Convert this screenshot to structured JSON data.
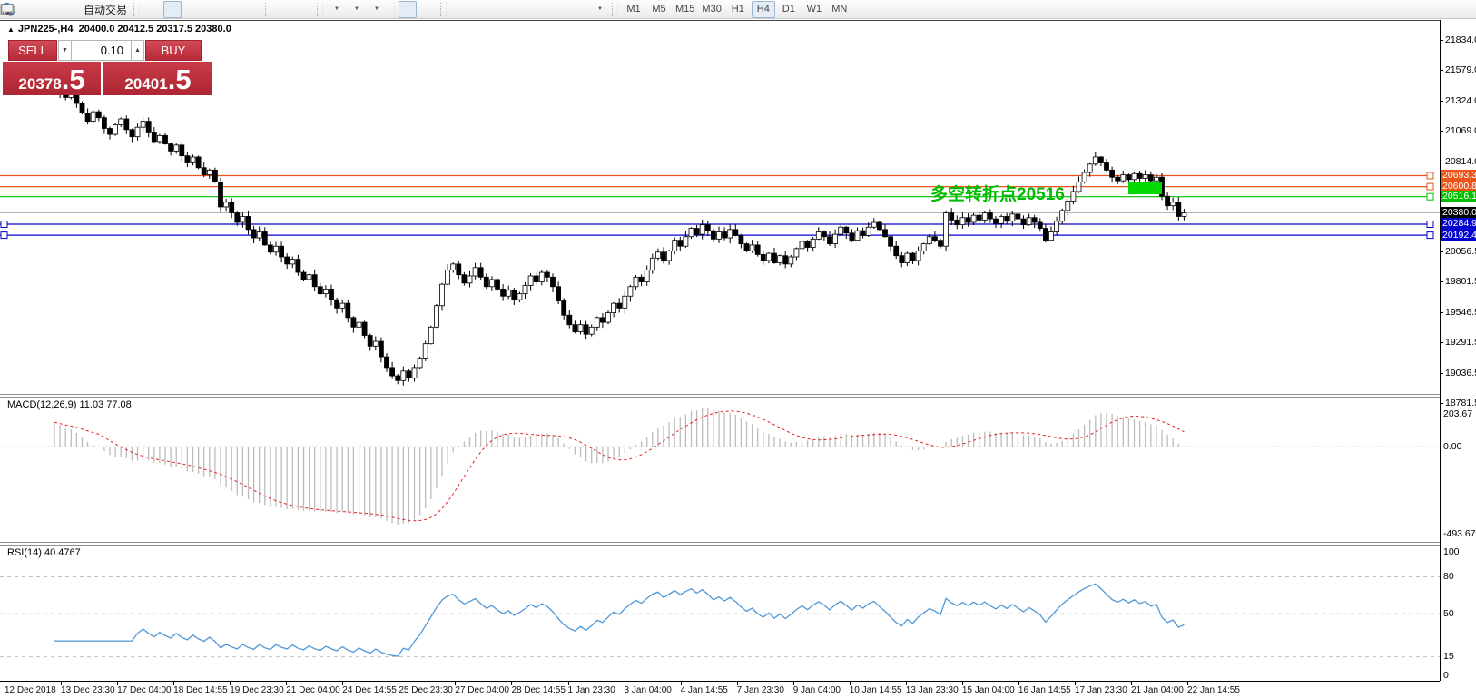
{
  "toolbar": {
    "new_order_label": "单",
    "autotrade_label": "自动交易",
    "dropdown_glyph": "▼",
    "timeframes": [
      "M1",
      "M5",
      "M15",
      "M30",
      "H1",
      "H4",
      "D1",
      "W1",
      "MN"
    ],
    "active_timeframe": "H4"
  },
  "symbol_bar": {
    "marker": "▲",
    "symbol": "JPN225-,H4",
    "ohlc": "20400.0 20412.5 20317.5 20380.0"
  },
  "trade_panel": {
    "sell_label": "SELL",
    "buy_label": "BUY",
    "volume": "0.10",
    "spinner_down": "▼",
    "spinner_up": "▲",
    "sell_price_main": "20378",
    "sell_price_frac": ".5",
    "buy_price_main": "20401",
    "buy_price_frac": ".5"
  },
  "annotation": {
    "text": "多空转折点20516",
    "color": "#00bb00"
  },
  "levels": [
    {
      "price": 20693.3,
      "label": "20693.3",
      "color": "#e8541a",
      "kind": "resistance-line"
    },
    {
      "price": 20600.8,
      "label": "20600.8",
      "color": "#e8541a",
      "kind": "resistance-line"
    },
    {
      "price": 20516.1,
      "label": "20516.1",
      "color": "#00c000",
      "kind": "pivot-line"
    },
    {
      "price": 20380.0,
      "label": "20380.0",
      "color": "#000000",
      "kind": "current-price"
    },
    {
      "price": 20284.9,
      "label": "20284.9",
      "color": "#0202cf",
      "kind": "support-line"
    },
    {
      "price": 20192.4,
      "label": "20192.4",
      "color": "#0202cf",
      "kind": "support-line"
    }
  ],
  "price_scale_ticks": [
    21834.0,
    21579.0,
    21324.0,
    21069.0,
    20814.0,
    20056.5,
    19801.5,
    19546.5,
    19291.5,
    19036.5,
    18781.5
  ],
  "macd_panel": {
    "label": "MACD(12,26,9) 11.03 77.08",
    "scale_max": "203.67",
    "scale_zero": "0.00",
    "scale_min": "-493.67"
  },
  "rsi_panel": {
    "label": "RSI(14) 40.4767",
    "scale_labels": [
      "100",
      "80",
      "50",
      "15",
      "0"
    ],
    "level_values": [
      80,
      50,
      15
    ]
  },
  "time_axis": [
    "12 Dec 2018",
    "13 Dec 23:30",
    "17 Dec 04:00",
    "18 Dec 14:55",
    "19 Dec 23:30",
    "21 Dec 04:00",
    "24 Dec 14:55",
    "25 Dec 23:30",
    "27 Dec 04:00",
    "28 Dec 14:55",
    "1 Jan 23:30",
    "3 Jan 04:00",
    "4 Jan 14:55",
    "7 Jan 23:30",
    "9 Jan 04:00",
    "10 Jan 14:55",
    "13 Jan 23:30",
    "15 Jan 04:00",
    "16 Jan 14:55",
    "17 Jan 23:30",
    "21 Jan 04:00",
    "22 Jan 14:55"
  ],
  "chart_data": {
    "type": "candlestick",
    "symbol": "JPN225-",
    "timeframe": "H4",
    "current_bar": {
      "open": 20400.0,
      "high": 20412.5,
      "low": 20317.5,
      "close": 20380.0
    },
    "bid": 20378.5,
    "ask": 20401.5,
    "y_range": [
      18781.5,
      21834.0
    ],
    "horizontal_levels": [
      20693.3,
      20600.8,
      20516.1,
      20284.9,
      20192.4
    ],
    "current_price": 20380.0,
    "first_open": 21460,
    "closes": [
      21430,
      21380,
      21350,
      21400,
      21300,
      21220,
      21150,
      21230,
      21180,
      21090,
      21040,
      21120,
      21170,
      21080,
      21020,
      21100,
      21150,
      21060,
      20980,
      21030,
      20960,
      20900,
      20950,
      20860,
      20800,
      20850,
      20760,
      20700,
      20740,
      20640,
      20430,
      20470,
      20380,
      20300,
      20350,
      20240,
      20170,
      20220,
      20110,
      20050,
      20100,
      20010,
      19950,
      19990,
      19880,
      19820,
      19860,
      19760,
      19700,
      19740,
      19650,
      19580,
      19620,
      19500,
      19420,
      19460,
      19350,
      19260,
      19300,
      19170,
      19080,
      19010,
      18970,
      19050,
      18990,
      19080,
      19160,
      19280,
      19420,
      19600,
      19780,
      19900,
      19950,
      19860,
      19790,
      19850,
      19920,
      19840,
      19760,
      19820,
      19740,
      19680,
      19730,
      19650,
      19700,
      19770,
      19850,
      19800,
      19880,
      19840,
      19760,
      19640,
      19520,
      19440,
      19380,
      19440,
      19360,
      19420,
      19500,
      19460,
      19540,
      19620,
      19580,
      19680,
      19760,
      19840,
      19800,
      19900,
      20000,
      20050,
      19980,
      20060,
      20150,
      20100,
      20180,
      20250,
      20200,
      20280,
      20230,
      20160,
      20220,
      20170,
      20240,
      20190,
      20120,
      20060,
      20110,
      20030,
      19980,
      20040,
      19960,
      20020,
      19950,
      20010,
      20080,
      20140,
      20090,
      20160,
      20220,
      20180,
      20120,
      20200,
      20260,
      20210,
      20150,
      20230,
      20190,
      20260,
      20300,
      20240,
      20180,
      20100,
      20020,
      19960,
      20040,
      19980,
      20060,
      20120,
      20180,
      20150,
      20100,
      20380,
      20320,
      20280,
      20340,
      20300,
      20360,
      20320,
      20380,
      20330,
      20290,
      20350,
      20310,
      20370,
      20330,
      20280,
      20340,
      20300,
      20250,
      20150,
      20220,
      20310,
      20400,
      20480,
      20560,
      20640,
      20720,
      20790,
      20850,
      20800,
      20740,
      20680,
      20650,
      20700,
      20660,
      20710,
      20670,
      20700,
      20650,
      20680,
      20520,
      20440,
      20470,
      20350,
      20380
    ],
    "indicators": [
      {
        "name": "MACD",
        "params": [
          12,
          26,
          9
        ],
        "display_values": [
          11.03,
          77.08
        ],
        "scale": [
          -493.67,
          203.67
        ]
      },
      {
        "name": "RSI",
        "params": [
          14
        ],
        "display_value": 40.4767,
        "levels": [
          15,
          50,
          80
        ]
      }
    ]
  }
}
